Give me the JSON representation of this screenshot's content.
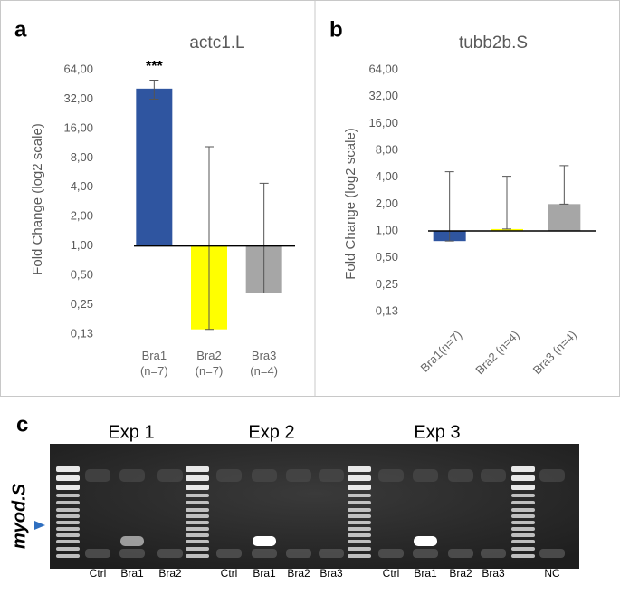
{
  "chart_data": [
    {
      "type": "bar",
      "panel": "a",
      "title": "actc1.L",
      "y_label": "Fold Change  (log2 scale)",
      "log_scale": 2,
      "categories": [
        "Bra1 (n=7)",
        "Bra2 (n=7)",
        "Bra3 (n=4)"
      ],
      "values": [
        41,
        0.14,
        0.33
      ],
      "err_low": [
        32,
        0.14,
        0.33
      ],
      "err_high": [
        50,
        10.4,
        4.4
      ],
      "colors": [
        "#2f55a0",
        "#ffff00",
        "#a6a6a6"
      ],
      "annotation": "***",
      "ylim": [
        0.125,
        64
      ],
      "yticks": [
        {
          "value": 0.125,
          "label": "0,13"
        },
        {
          "value": 0.25,
          "label": "0,25"
        },
        {
          "value": 0.5,
          "label": "0,50"
        },
        {
          "value": 1,
          "label": "1,00"
        },
        {
          "value": 2,
          "label": "2,00"
        },
        {
          "value": 4,
          "label": "4,00"
        },
        {
          "value": 8,
          "label": "8,00"
        },
        {
          "value": 16,
          "label": "16,00"
        },
        {
          "value": 32,
          "label": "32,00"
        },
        {
          "value": 64,
          "label": "64,00"
        }
      ]
    },
    {
      "type": "bar",
      "panel": "b",
      "title": "tubb2b.S",
      "y_label": "Fold Change  (log2 scale)",
      "log_scale": 2,
      "categories": [
        "Bra1(n=7)",
        "Bra2 (n=4)",
        "Bra3 (n=4)"
      ],
      "values": [
        0.77,
        1.05,
        2.0
      ],
      "err_low": [
        0.77,
        1.05,
        2.0
      ],
      "err_high": [
        4.6,
        4.1,
        5.4
      ],
      "colors": [
        "#2f55a0",
        "#ffff00",
        "#a6a6a6"
      ],
      "ylim": [
        0.125,
        64
      ],
      "yticks": [
        {
          "value": 0.125,
          "label": "0,13"
        },
        {
          "value": 0.25,
          "label": "0,25"
        },
        {
          "value": 0.5,
          "label": "0,50"
        },
        {
          "value": 1,
          "label": "1,00"
        },
        {
          "value": 2,
          "label": "2,00"
        },
        {
          "value": 4,
          "label": "4,00"
        },
        {
          "value": 8,
          "label": "8,00"
        },
        {
          "value": 16,
          "label": "16,00"
        },
        {
          "value": 32,
          "label": "32,00"
        },
        {
          "value": 64,
          "label": "64,00"
        }
      ]
    }
  ],
  "gel": {
    "panel": "c",
    "experiments": [
      "Exp 1",
      "Exp 2",
      "Exp 3"
    ],
    "gene": "myod.S",
    "lanes": [
      "Ctrl",
      "Bra1",
      "Bra2",
      "Ctrl",
      "Bra1",
      "Bra2",
      "Bra3",
      "Ctrl",
      "Bra1",
      "Bra2",
      "Bra3",
      "NC"
    ]
  }
}
